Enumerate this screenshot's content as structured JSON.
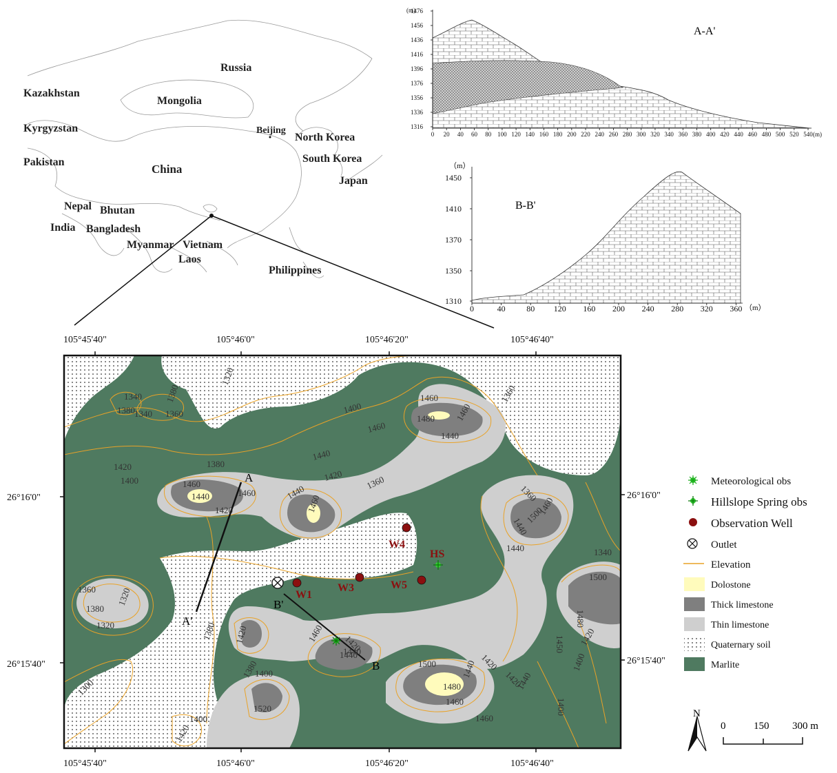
{
  "colors": {
    "marlite": "#4f7a60",
    "thin_limestone": "#cfcfcf",
    "thick_limestone": "#7f7f7f",
    "dolostone": "#fffbbc",
    "elevation": "#e9a227",
    "well": "#8b0f0f",
    "meteo": "#33cc33"
  },
  "china_map": {
    "countries": [
      "Russia",
      "Kazakhstan",
      "Mongolia",
      "Kyrgyzstan",
      "Beijing",
      "North Korea",
      "South Korea",
      "Pakistan",
      "China",
      "Japan",
      "Nepal",
      "Bhutan",
      "India",
      "Bangladesh",
      "Myanmar",
      "Vietnam",
      "Laos",
      "Philippines"
    ]
  },
  "profile_aa": {
    "title": "A-A'",
    "y_unit": "(m)",
    "x_unit": "(m)",
    "y_ticks": [
      "1476",
      "1456",
      "1436",
      "1416",
      "1396",
      "1376",
      "1356",
      "1336",
      "1316"
    ],
    "x_ticks": [
      "0",
      "20",
      "40",
      "60",
      "80",
      "100",
      "120",
      "140",
      "160",
      "180",
      "200",
      "220",
      "240",
      "260",
      "280",
      "300",
      "320",
      "340",
      "360",
      "380",
      "400",
      "420",
      "440",
      "460",
      "480",
      "500",
      "520",
      "540"
    ]
  },
  "profile_bb": {
    "title": "B-B'",
    "y_unit": "（m）",
    "x_unit": "（m）",
    "y_ticks": [
      "1450",
      "1410",
      "1370",
      "1350",
      "1310"
    ],
    "x_ticks": [
      "0",
      "40",
      "80",
      "120",
      "160",
      "200",
      "240",
      "280",
      "320",
      "360"
    ]
  },
  "study_map": {
    "lon_labels": [
      "105°45'40\"",
      "105°46'0\"",
      "105°46'20\"",
      "105°46'40\""
    ],
    "lat_labels": [
      "26°16'0\"",
      "26°15'40\""
    ],
    "section_labels": [
      "A",
      "A'",
      "B'",
      "B"
    ],
    "elevation_labels": [
      "1320",
      "1340",
      "1380",
      "1340",
      "1360",
      "1380",
      "1400",
      "1460",
      "1480",
      "1460",
      "1440",
      "1360",
      "1360",
      "1420",
      "1400",
      "1380",
      "1460",
      "1440",
      "1460",
      "1420",
      "1440",
      "1460",
      "1460",
      "1420",
      "1360",
      "1440",
      "1500",
      "1460",
      "1440",
      "1440",
      "1340",
      "1360",
      "1380",
      "1320",
      "1320",
      "1380",
      "1420",
      "1460",
      "1440",
      "1420",
      "1440",
      "1380",
      "1400",
      "1520",
      "1500",
      "1480",
      "1440",
      "1460",
      "1460",
      "1420",
      "1420",
      "1440",
      "1500",
      "1480",
      "1450",
      "1420",
      "1400",
      "1400",
      "1300",
      "1400",
      "1420"
    ],
    "wells": [
      "W1",
      "W3",
      "W4",
      "W5",
      "HS"
    ]
  },
  "legend": {
    "items": [
      "Meteorological obs",
      "Hillslope Spring obs",
      "Observation Well",
      "Outlet",
      "Elevation",
      "Dolostone",
      "Thick limestone",
      "Thin limestone",
      "Quaternary soil",
      "Marlite"
    ]
  },
  "scale_bar": {
    "north": "N",
    "labels": [
      "0",
      "150",
      "300 m"
    ]
  }
}
